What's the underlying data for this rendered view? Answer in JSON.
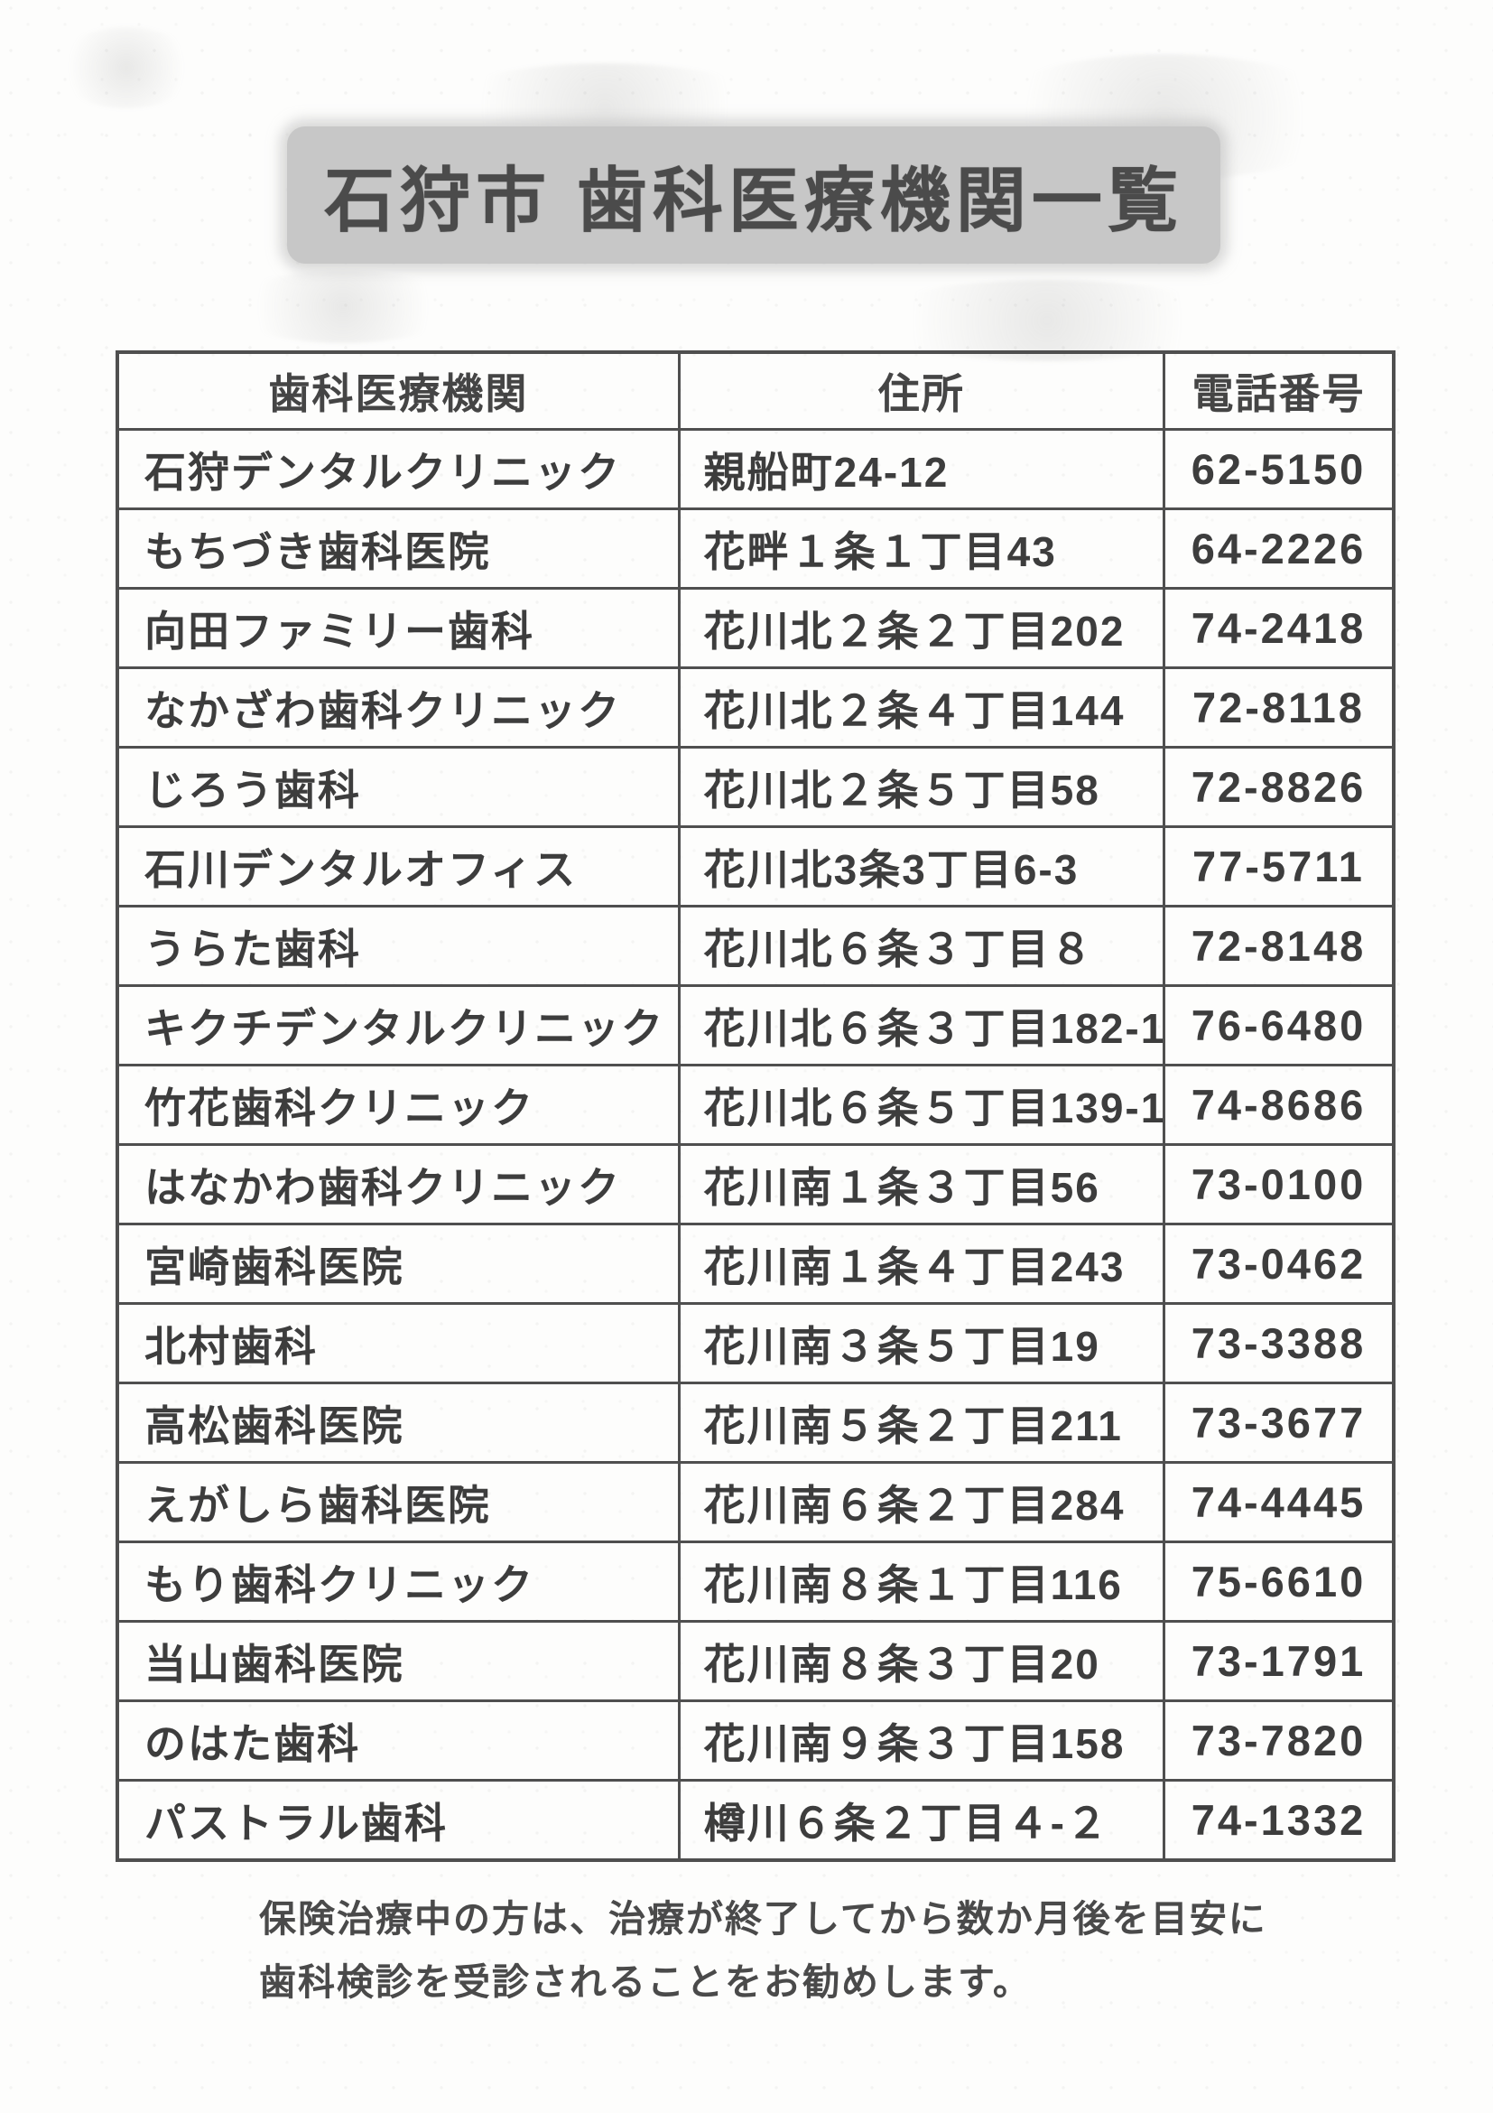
{
  "page": {
    "title": "石狩市 歯科医療機関一覧"
  },
  "table": {
    "columns": [
      "歯科医療機関",
      "住所",
      "電話番号"
    ],
    "rows": [
      {
        "name": "石狩デンタルクリニック",
        "address": "親船町24-12",
        "phone": "62-5150"
      },
      {
        "name": "もちづき歯科医院",
        "address": "花畔１条１丁目43",
        "phone": "64-2226"
      },
      {
        "name": "向田ファミリー歯科",
        "address": "花川北２条２丁目202",
        "phone": "74-2418"
      },
      {
        "name": "なかざわ歯科クリニック",
        "address": "花川北２条４丁目144",
        "phone": "72-8118"
      },
      {
        "name": "じろう歯科",
        "address": "花川北２条５丁目58",
        "phone": "72-8826"
      },
      {
        "name": "石川デンタルオフィス",
        "address": "花川北3条3丁目6-3",
        "phone": "77-5711"
      },
      {
        "name": "うらた歯科",
        "address": "花川北６条３丁目８",
        "phone": "72-8148"
      },
      {
        "name": "キクチデンタルクリニック",
        "address": "花川北６条３丁目182-1",
        "phone": "76-6480"
      },
      {
        "name": "竹花歯科クリニック",
        "address": "花川北６条５丁目139-1",
        "phone": "74-8686"
      },
      {
        "name": "はなかわ歯科クリニック",
        "address": "花川南１条３丁目56",
        "phone": "73-0100"
      },
      {
        "name": "宮崎歯科医院",
        "address": "花川南１条４丁目243",
        "phone": "73-0462"
      },
      {
        "name": "北村歯科",
        "address": "花川南３条５丁目19",
        "phone": "73-3388"
      },
      {
        "name": "高松歯科医院",
        "address": "花川南５条２丁目211",
        "phone": "73-3677"
      },
      {
        "name": "えがしら歯科医院",
        "address": "花川南６条２丁目284",
        "phone": "74-4445"
      },
      {
        "name": "もり歯科クリニック",
        "address": "花川南８条１丁目116",
        "phone": "75-6610"
      },
      {
        "name": "当山歯科医院",
        "address": "花川南８条３丁目20",
        "phone": "73-1791"
      },
      {
        "name": "のはた歯科",
        "address": "花川南９条３丁目158",
        "phone": "73-7820"
      },
      {
        "name": "パストラル歯科",
        "address": "樽川６条２丁目４-２",
        "phone": "74-1332"
      }
    ]
  },
  "note": {
    "line1": "保険治療中の方は、治療が終了してから数か月後を目安に",
    "line2": "歯科検診を受診されることをお勧めします。"
  }
}
